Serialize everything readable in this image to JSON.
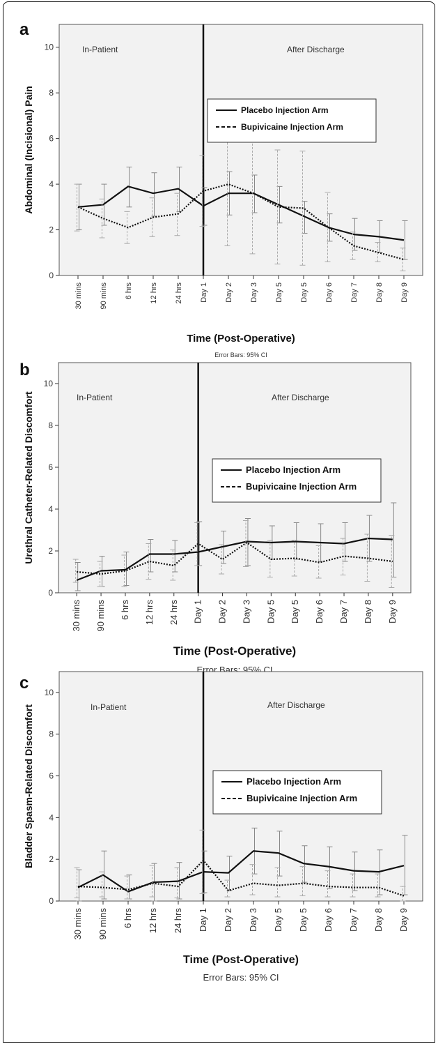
{
  "chart_data": [
    {
      "panel": "a",
      "type": "line",
      "ylabel": "Abdominal (Incisional) Pain",
      "xlabel": "Time (Post-Operative)",
      "note": "Error Bars: 95% CI",
      "categories": [
        "30 mins",
        "90 mins",
        "6 hrs",
        "12 hrs",
        "24 hrs",
        "Day 1",
        "Day 2",
        "Day 3",
        "Day 5",
        "Day 5",
        "Day 6",
        "Day 7",
        "Day 8",
        "Day 9"
      ],
      "ylim": [
        0,
        11
      ],
      "yticks": [
        0,
        2,
        4,
        6,
        8,
        10
      ],
      "region_labels": {
        "left": "In-Patient",
        "right": "After Discharge"
      },
      "legend": {
        "placement": "right",
        "entries": [
          "Placebo Injection Arm",
          "Bupivicaine Injection Arm"
        ]
      },
      "series": [
        {
          "name": "Placebo Injection Arm",
          "style": "solid",
          "values": [
            3.0,
            3.1,
            3.9,
            3.6,
            3.8,
            3.05,
            3.6,
            3.6,
            3.1,
            2.6,
            2.1,
            1.8,
            1.7,
            1.55
          ],
          "ci_low": [
            2.0,
            2.2,
            3.0,
            2.6,
            2.8,
            2.2,
            2.65,
            2.75,
            2.3,
            1.85,
            1.5,
            1.1,
            1.0,
            0.7
          ],
          "ci_high": [
            4.0,
            4.0,
            4.75,
            4.5,
            4.75,
            3.85,
            4.55,
            4.4,
            3.9,
            3.25,
            2.7,
            2.5,
            2.4,
            2.4
          ]
        },
        {
          "name": "Bupivicaine Injection Arm",
          "style": "dotted",
          "values": [
            3.0,
            2.5,
            2.1,
            2.55,
            2.7,
            3.7,
            4.0,
            3.6,
            3.0,
            2.95,
            2.1,
            1.3,
            1.0,
            0.7
          ],
          "ci_low": [
            1.95,
            1.65,
            1.4,
            1.7,
            1.75,
            2.15,
            1.3,
            0.95,
            0.5,
            0.45,
            0.6,
            0.7,
            0.6,
            0.2
          ],
          "ci_high": [
            4.0,
            3.35,
            2.8,
            3.4,
            3.6,
            5.25,
            6.5,
            6.5,
            5.5,
            5.45,
            3.65,
            1.9,
            1.45,
            1.2
          ]
        }
      ]
    },
    {
      "panel": "b",
      "type": "line",
      "ylabel": "Urethral Catheter-Related Discomfort",
      "xlabel": "Time (Post-Operative)",
      "note": "Error Bars: 95% CI",
      "categories": [
        "30 mins",
        "90 mins",
        "6 hrs",
        "12 hrs",
        "24 hrs",
        "Day 1",
        "Day 2",
        "Day 3",
        "Day 5",
        "Day 5",
        "Day 6",
        "Day 7",
        "Day 8",
        "Day 9"
      ],
      "ylim": [
        0,
        11
      ],
      "yticks": [
        0,
        2,
        4,
        6,
        8,
        10
      ],
      "region_labels": {
        "left": "In-Patient",
        "right": "After Discharge"
      },
      "legend": {
        "placement": "right",
        "entries": [
          "Placebo Injection Arm",
          "Bupivicaine Injection Arm"
        ]
      },
      "series": [
        {
          "name": "Placebo Injection Arm",
          "style": "solid",
          "values": [
            0.6,
            1.05,
            1.1,
            1.85,
            1.85,
            1.95,
            2.2,
            2.45,
            2.4,
            2.45,
            2.4,
            2.35,
            2.6,
            2.55
          ],
          "ci_low": [
            0.1,
            0.3,
            0.35,
            1.0,
            1.0,
            1.3,
            1.4,
            1.3,
            1.6,
            1.6,
            1.5,
            1.5,
            1.5,
            0.75
          ],
          "ci_high": [
            1.45,
            1.75,
            1.95,
            2.55,
            2.5,
            3.4,
            2.95,
            3.55,
            3.2,
            3.35,
            3.3,
            3.35,
            3.7,
            4.3
          ]
        },
        {
          "name": "Bupivicaine Injection Arm",
          "style": "dotted",
          "values": [
            1.0,
            0.9,
            1.05,
            1.5,
            1.3,
            2.35,
            1.6,
            2.4,
            1.6,
            1.65,
            1.45,
            1.75,
            1.65,
            1.5
          ],
          "ci_low": [
            0.5,
            0.3,
            0.3,
            0.65,
            0.6,
            1.3,
            0.9,
            1.25,
            0.75,
            0.8,
            0.7,
            0.85,
            0.55,
            0.25
          ],
          "ci_high": [
            1.6,
            1.5,
            1.8,
            2.35,
            2.05,
            3.35,
            2.3,
            3.45,
            2.5,
            2.5,
            2.25,
            2.6,
            2.8,
            2.75
          ]
        }
      ]
    },
    {
      "panel": "c",
      "type": "line",
      "ylabel": "Bladder Spasm-Related Discomfort",
      "xlabel": "Time (Post-Operative)",
      "note": "Error Bars: 95% CI",
      "categories": [
        "30 mins",
        "90 mins",
        "6 hrs",
        "12 hrs",
        "24 hrs",
        "Day 1",
        "Day 2",
        "Day 3",
        "Day 5",
        "Day 5",
        "Day 6",
        "Day 7",
        "Day 8",
        "Day 9"
      ],
      "ylim": [
        0,
        11
      ],
      "yticks": [
        0,
        2,
        4,
        6,
        8,
        10
      ],
      "region_labels": {
        "left": "In-Patient",
        "right": "After Discharge"
      },
      "legend": {
        "placement": "right",
        "entries": [
          "Placebo Injection Arm",
          "Bupivicaine Injection Arm"
        ]
      },
      "series": [
        {
          "name": "Placebo Injection Arm",
          "style": "solid",
          "values": [
            0.65,
            1.25,
            0.45,
            0.9,
            0.95,
            1.4,
            1.35,
            2.4,
            2.3,
            1.8,
            1.65,
            1.45,
            1.4,
            1.7
          ],
          "ci_low": [
            0.0,
            0.1,
            0.1,
            0.0,
            0.1,
            0.4,
            0.5,
            1.3,
            1.2,
            0.9,
            0.6,
            0.5,
            0.3,
            0.3
          ],
          "ci_high": [
            1.5,
            2.4,
            1.25,
            1.8,
            1.85,
            2.4,
            2.15,
            3.5,
            3.35,
            2.65,
            2.6,
            2.35,
            2.45,
            3.15
          ]
        },
        {
          "name": "Bupivicaine Injection Arm",
          "style": "dotted",
          "values": [
            0.7,
            0.65,
            0.55,
            0.85,
            0.7,
            1.95,
            0.5,
            0.85,
            0.75,
            0.85,
            0.7,
            0.65,
            0.65,
            0.25
          ],
          "ci_low": [
            0.15,
            0.2,
            0.1,
            0.2,
            0.15,
            0.35,
            0.2,
            0.3,
            0.2,
            0.25,
            0.2,
            0.2,
            0.2,
            0.0
          ],
          "ci_high": [
            1.6,
            1.4,
            1.2,
            1.7,
            1.6,
            3.4,
            1.0,
            1.75,
            1.6,
            1.65,
            1.45,
            1.3,
            1.3,
            0.7
          ]
        }
      ]
    }
  ]
}
